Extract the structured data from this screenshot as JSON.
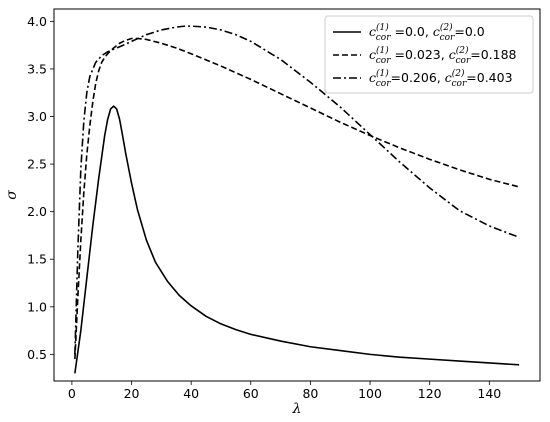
{
  "chart_data": {
    "type": "line",
    "xlabel": "λ",
    "ylabel": "σ",
    "xlim": [
      -6,
      157
    ],
    "ylim": [
      0.22,
      4.13
    ],
    "xticks": [
      0,
      20,
      40,
      60,
      80,
      100,
      120,
      140
    ],
    "yticks": [
      0.5,
      1.0,
      1.5,
      2.0,
      2.5,
      3.0,
      3.5,
      4.0
    ],
    "grid": false,
    "legend_position": "top-right",
    "series": [
      {
        "name": "c_cor^(1) =0.0, c_cor^(2)=0.0",
        "legend": {
          "c1": "0.0",
          "c2": "0.0",
          "sep1": " =",
          "sep2": ", ",
          "sep3": "="
        },
        "style": "solid",
        "x": [
          1,
          3,
          5,
          7,
          9,
          11,
          12,
          13,
          14,
          15,
          16,
          17,
          18,
          20,
          22,
          25,
          28,
          32,
          36,
          40,
          45,
          50,
          55,
          60,
          70,
          80,
          90,
          100,
          110,
          120,
          130,
          140,
          150
        ],
        "y": [
          0.3,
          0.75,
          1.3,
          1.85,
          2.35,
          2.8,
          2.97,
          3.08,
          3.11,
          3.08,
          2.97,
          2.8,
          2.62,
          2.3,
          2.02,
          1.7,
          1.47,
          1.27,
          1.12,
          1.01,
          0.9,
          0.82,
          0.76,
          0.71,
          0.64,
          0.58,
          0.54,
          0.5,
          0.47,
          0.45,
          0.43,
          0.41,
          0.39
        ]
      },
      {
        "name": "c_cor^(1) =0.023, c_cor^(2)=0.188",
        "legend": {
          "c1": "0.023",
          "c2": "0.188",
          "sep1": " =",
          "sep2": ", ",
          "sep3": "="
        },
        "style": "dashed",
        "x": [
          1,
          2,
          3,
          4,
          5,
          6,
          7,
          8,
          9,
          10,
          11,
          12,
          14,
          16,
          18,
          20,
          22,
          25,
          30,
          35,
          40,
          50,
          60,
          70,
          80,
          90,
          100,
          110,
          120,
          130,
          140,
          150
        ],
        "y": [
          0.45,
          1.1,
          1.7,
          2.2,
          2.6,
          2.9,
          3.15,
          3.35,
          3.48,
          3.57,
          3.62,
          3.66,
          3.72,
          3.77,
          3.8,
          3.82,
          3.82,
          3.81,
          3.77,
          3.72,
          3.66,
          3.53,
          3.39,
          3.24,
          3.09,
          2.94,
          2.8,
          2.67,
          2.55,
          2.44,
          2.34,
          2.26
        ]
      },
      {
        "name": "c_cor^(1) =0.206, c_cor^(2)=0.403",
        "legend": {
          "c1": "0.206",
          "c2": "0.403",
          "sep1": "=",
          "sep2": ", ",
          "sep3": "="
        },
        "style": "dashdot",
        "x": [
          1,
          2,
          3,
          4,
          5,
          6,
          8,
          10,
          12,
          15,
          18,
          20,
          25,
          30,
          35,
          38,
          40,
          45,
          50,
          55,
          60,
          70,
          80,
          90,
          100,
          110,
          120,
          130,
          140,
          150
        ],
        "y": [
          0.5,
          1.6,
          2.45,
          2.95,
          3.25,
          3.42,
          3.57,
          3.64,
          3.68,
          3.72,
          3.76,
          3.79,
          3.86,
          3.91,
          3.94,
          3.95,
          3.95,
          3.94,
          3.91,
          3.86,
          3.79,
          3.6,
          3.36,
          3.1,
          2.81,
          2.52,
          2.25,
          2.01,
          1.85,
          1.73
        ]
      }
    ]
  }
}
